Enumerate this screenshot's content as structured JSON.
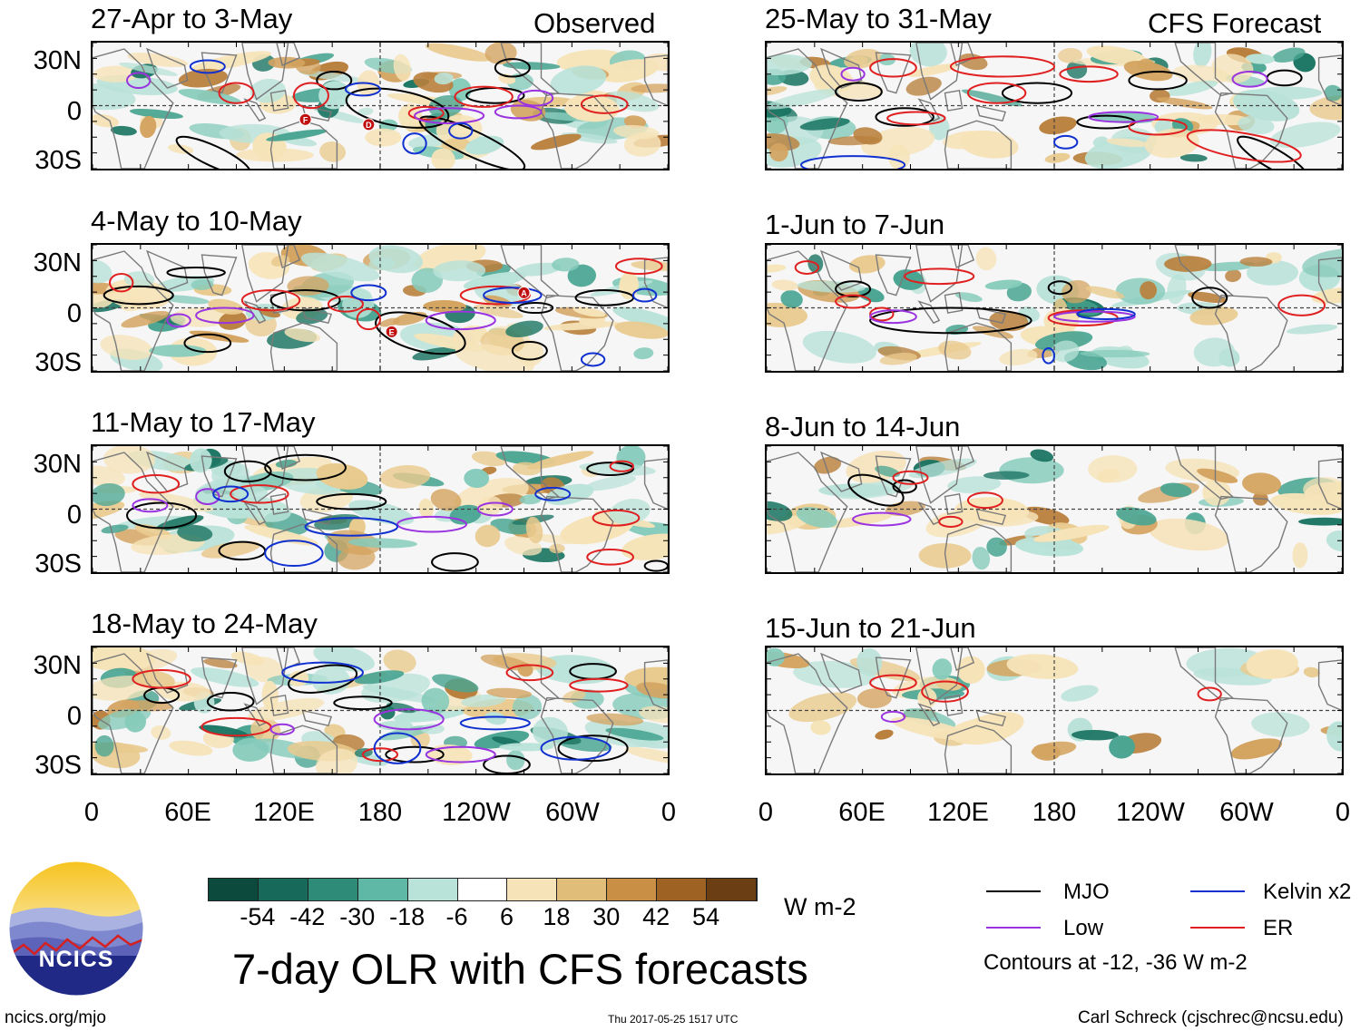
{
  "header": {
    "left_heading": "Observed",
    "right_heading": "CFS Forecast"
  },
  "observed_panels": [
    {
      "title": "27-Apr to 3-May"
    },
    {
      "title": "4-May to 10-May"
    },
    {
      "title": "11-May to 17-May"
    },
    {
      "title": "18-May to 24-May"
    }
  ],
  "forecast_panels": [
    {
      "title": "25-May to 31-May"
    },
    {
      "title": "1-Jun to 7-Jun"
    },
    {
      "title": "8-Jun to 14-Jun"
    },
    {
      "title": "15-Jun to 21-Jun"
    }
  ],
  "axes": {
    "lat_labels": [
      "30N",
      "0",
      "30S"
    ],
    "lon_labels": [
      "0",
      "60E",
      "120E",
      "180",
      "120W",
      "60W",
      "0"
    ]
  },
  "colorbar": {
    "ticks": [
      "-54",
      "-42",
      "-30",
      "-18",
      "-6",
      "6",
      "18",
      "30",
      "42",
      "54"
    ],
    "colors": [
      "#0c4a3e",
      "#17695a",
      "#2d8b78",
      "#5fb8a6",
      "#b9e2d8",
      "#ffffff",
      "#f6e3b8",
      "#e1bd7a",
      "#c98f45",
      "#9e6322",
      "#6b3f13"
    ],
    "units": "W m-2"
  },
  "main_title": "7-day OLR with CFS forecasts",
  "legend": {
    "items": [
      {
        "label": "MJO",
        "color": "#000000"
      },
      {
        "label": "Kelvin x2",
        "color": "#1030d0"
      },
      {
        "label": "Low",
        "color": "#9a33e0"
      },
      {
        "label": "ER",
        "color": "#e02020"
      }
    ],
    "note": "Contours at -12, -36 W m-2"
  },
  "logo": {
    "text": "NCICS"
  },
  "footer": {
    "url": "ncics.org/mjo",
    "timestamp": "Thu 2017-05-25 1517 UTC",
    "credit": "Carl Schreck (cjschrec@ncsu.edu)"
  },
  "map_markers": {
    "p0": [
      "F",
      "D"
    ],
    "p1": [
      "A",
      "E"
    ]
  }
}
